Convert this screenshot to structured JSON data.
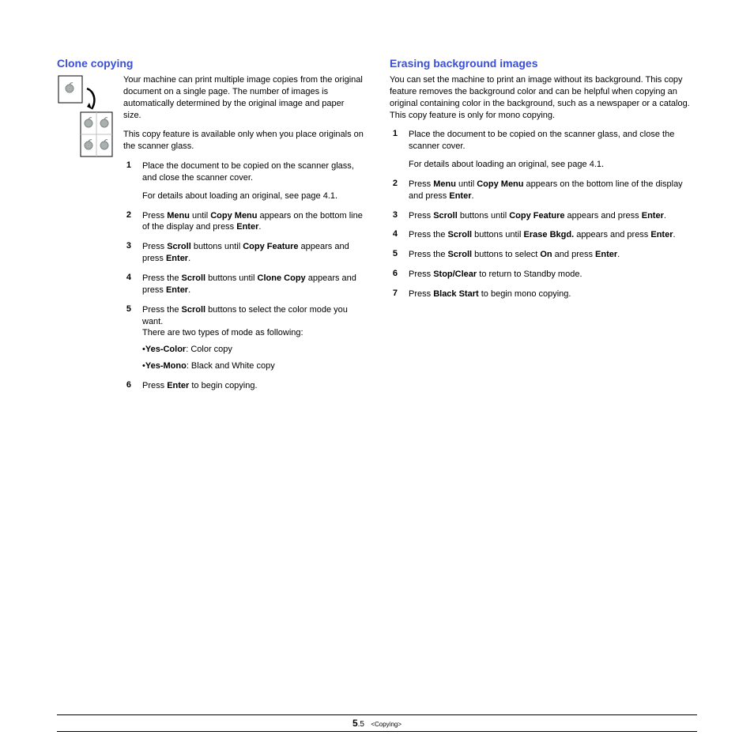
{
  "left": {
    "heading": "Clone copying",
    "intro1": "Your machine can print multiple image copies from the original document on a single page. The number of images is automatically determined by the original image and paper size.",
    "intro2": "This copy feature is available only when you place originals on the scanner glass.",
    "steps": [
      {
        "n": "1",
        "pre": "Place the document to be copied on the scanner glass, and close the scanner cover.",
        "sub": "For details about loading an original, see page 4.1."
      },
      {
        "n": "2",
        "segments": [
          "Press ",
          {
            "b": "Menu"
          },
          " until ",
          {
            "b": "Copy Menu"
          },
          " appears on the bottom line of the display and press ",
          {
            "b": "Enter"
          },
          "."
        ]
      },
      {
        "n": "3",
        "segments": [
          "Press ",
          {
            "b": "Scroll"
          },
          " buttons until ",
          {
            "b": "Copy Feature"
          },
          " appears and press ",
          {
            "b": "Enter"
          },
          "."
        ]
      },
      {
        "n": "4",
        "segments": [
          "Press the ",
          {
            "b": "Scroll"
          },
          " buttons until ",
          {
            "b": "Clone Copy"
          },
          " appears and press ",
          {
            "b": "Enter"
          },
          "."
        ]
      },
      {
        "n": "5",
        "segments": [
          "Press the ",
          {
            "b": "Scroll"
          },
          " buttons to select the color mode you want."
        ],
        "extraPlain": "There are two types of mode as following:",
        "bullets": [
          [
            {
              "b": "Yes-Color"
            },
            ": Color copy"
          ],
          [
            {
              "b": "Yes-Mono"
            },
            ": Black and White copy"
          ]
        ]
      },
      {
        "n": "6",
        "segments": [
          "Press ",
          {
            "b": "Enter"
          },
          " to begin copying."
        ]
      }
    ]
  },
  "right": {
    "heading": "Erasing background images",
    "intro": "You can set the machine to print an image without its background. This copy feature removes the background color and can be helpful when copying an original containing color in the background, such as a newspaper or a catalog. This copy feature is only for mono copying.",
    "steps": [
      {
        "n": "1",
        "pre": "Place the document to be copied on the scanner glass, and close the scanner cover.",
        "sub": "For details about loading an original, see page 4.1."
      },
      {
        "n": "2",
        "segments": [
          "Press ",
          {
            "b": "Menu"
          },
          " until ",
          {
            "b": "Copy Menu"
          },
          " appears on the bottom line of the display and press ",
          {
            "b": "Enter"
          },
          "."
        ]
      },
      {
        "n": "3",
        "segments": [
          "Press ",
          {
            "b": "Scroll"
          },
          " buttons until ",
          {
            "b": "Copy Feature"
          },
          " appears and press ",
          {
            "b": "Enter"
          },
          "."
        ]
      },
      {
        "n": "4",
        "segments": [
          "Press the ",
          {
            "b": "Scroll"
          },
          " buttons until ",
          {
            "b": "Erase Bkgd."
          },
          " appears and press ",
          {
            "b": "Enter"
          },
          "."
        ]
      },
      {
        "n": "5",
        "segments": [
          "Press the ",
          {
            "b": "Scroll"
          },
          " buttons to select ",
          {
            "b": "On"
          },
          " and press ",
          {
            "b": "Enter"
          },
          "."
        ]
      },
      {
        "n": "6",
        "segments": [
          "Press ",
          {
            "b": "Stop/Clear"
          },
          " to return to Standby mode."
        ]
      },
      {
        "n": "7",
        "segments": [
          "Press ",
          {
            "b": "Black Start"
          },
          " to begin mono copying."
        ]
      }
    ]
  },
  "footer": {
    "major": "5",
    "minor": ".5",
    "section": "<Copying>"
  },
  "colors": {
    "heading": "#3a4fd3",
    "apple": "#aab0b0",
    "appleStroke": "#7d8484"
  }
}
